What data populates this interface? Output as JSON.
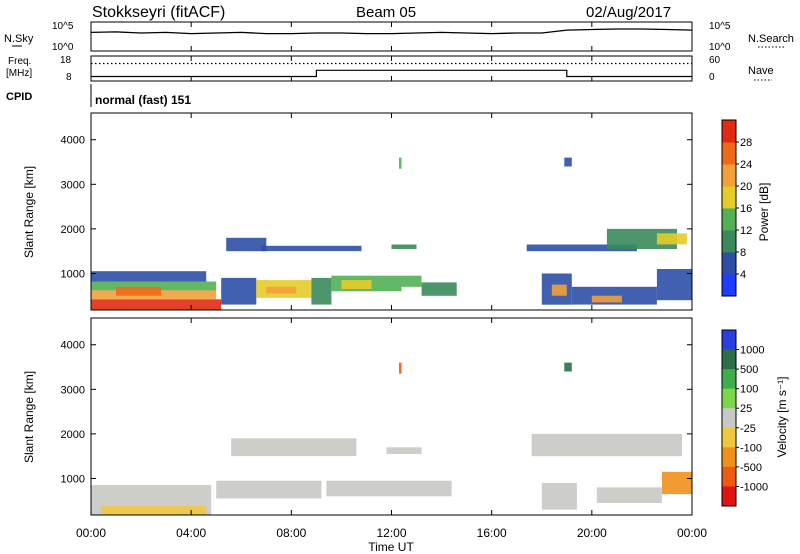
{
  "header": {
    "station": "Stokkseyri (fitACF)",
    "beam": "Beam 05",
    "date": "02/Aug/2017"
  },
  "labels": {
    "nsky": "N.Sky",
    "nsearch": "N.Search",
    "freq_line1": "Freq.",
    "freq_line2": "[MHz]",
    "nave": "Nave",
    "cpid": "CPID",
    "cpid_value": "normal (fast) 151",
    "time_axis": "Time UT"
  },
  "colors": {
    "axis": "#000000",
    "data_line": "#000000"
  },
  "chart_data": [
    {
      "type": "line",
      "name": "noise",
      "y_ticks_left": [
        "10^5",
        "10^0"
      ],
      "y_ticks_right": [
        "10^5",
        "10^0"
      ],
      "series": [
        {
          "name": "N.Sky",
          "style": "solid",
          "x_hours": [
            0,
            1,
            2,
            3,
            4,
            5,
            6,
            7,
            8,
            9,
            10,
            11,
            12,
            13,
            14,
            15,
            16,
            17,
            18,
            19,
            20,
            21,
            22,
            23,
            24
          ],
          "values_log10": [
            3.2,
            3.3,
            3.1,
            3.2,
            3.0,
            3.1,
            3.2,
            3.0,
            3.0,
            3.1,
            3.1,
            3.0,
            3.0,
            3.1,
            3.2,
            3.1,
            3.0,
            3.1,
            3.1,
            3.6,
            3.7,
            3.8,
            3.8,
            3.7,
            3.6
          ]
        }
      ]
    },
    {
      "type": "line",
      "name": "frequency",
      "y_ticks_left": [
        "18",
        "8"
      ],
      "y_ticks_right": [
        "60",
        "0"
      ],
      "series": [
        {
          "name": "Freq. [MHz]",
          "style": "solid",
          "x_hours": [
            0,
            9,
            9,
            19,
            19,
            24
          ],
          "values": [
            9.8,
            9.8,
            12.3,
            12.3,
            9.8,
            9.8
          ]
        },
        {
          "name": "Nave",
          "style": "dotted",
          "x_hours": [
            0,
            24
          ],
          "values": [
            42,
            42
          ]
        }
      ]
    },
    {
      "type": "heatmap",
      "name": "power",
      "ylabel": "Slant Range [km]",
      "y_ticks": [
        1000,
        2000,
        3000,
        4000
      ],
      "ylim": [
        180,
        4600
      ],
      "colorbar_label": "Power [dB]",
      "colorbar_ticks": [
        4,
        8,
        12,
        16,
        20,
        24,
        28
      ],
      "colorbar_range": [
        0,
        32
      ],
      "colorbar_colors": [
        "#1f3dff",
        "#2c4fa6",
        "#3a8a5a",
        "#52b055",
        "#e6cc2a",
        "#f2a03a",
        "#ee6a1a",
        "#e02a12"
      ],
      "regions": [
        {
          "x0": 0.0,
          "x1": 5.2,
          "r0": 180,
          "r1": 420,
          "level": 7
        },
        {
          "x0": 0.0,
          "x1": 5.0,
          "r0": 420,
          "r1": 620,
          "level": 5
        },
        {
          "x0": 0.0,
          "x1": 5.0,
          "r0": 620,
          "r1": 820,
          "level": 3
        },
        {
          "x0": 0.0,
          "x1": 4.6,
          "r0": 820,
          "r1": 1050,
          "level": 1
        },
        {
          "x0": 1.0,
          "x1": 2.8,
          "r0": 500,
          "r1": 700,
          "level": 6
        },
        {
          "x0": 5.2,
          "x1": 6.6,
          "r0": 300,
          "r1": 900,
          "level": 1
        },
        {
          "x0": 6.6,
          "x1": 8.8,
          "r0": 450,
          "r1": 850,
          "level": 4
        },
        {
          "x0": 7.0,
          "x1": 8.2,
          "r0": 550,
          "r1": 700,
          "level": 5
        },
        {
          "x0": 8.8,
          "x1": 9.6,
          "r0": 300,
          "r1": 900,
          "level": 2
        },
        {
          "x0": 9.6,
          "x1": 12.4,
          "r0": 600,
          "r1": 950,
          "level": 3
        },
        {
          "x0": 10.0,
          "x1": 11.2,
          "r0": 650,
          "r1": 850,
          "level": 4
        },
        {
          "x0": 12.4,
          "x1": 13.2,
          "r0": 700,
          "r1": 950,
          "level": 3
        },
        {
          "x0": 13.2,
          "x1": 14.6,
          "r0": 500,
          "r1": 800,
          "level": 2
        },
        {
          "x0": 5.4,
          "x1": 7.0,
          "r0": 1500,
          "r1": 1800,
          "level": 1
        },
        {
          "x0": 6.8,
          "x1": 10.8,
          "r0": 1500,
          "r1": 1620,
          "level": 1
        },
        {
          "x0": 12.0,
          "x1": 13.0,
          "r0": 1550,
          "r1": 1650,
          "level": 2
        },
        {
          "x0": 18.0,
          "x1": 19.2,
          "r0": 300,
          "r1": 1000,
          "level": 1
        },
        {
          "x0": 18.4,
          "x1": 19.0,
          "r0": 500,
          "r1": 750,
          "level": 5
        },
        {
          "x0": 19.2,
          "x1": 22.6,
          "r0": 300,
          "r1": 700,
          "level": 1
        },
        {
          "x0": 20.0,
          "x1": 21.2,
          "r0": 350,
          "r1": 500,
          "level": 5
        },
        {
          "x0": 22.6,
          "x1": 24.0,
          "r0": 400,
          "r1": 1100,
          "level": 1
        },
        {
          "x0": 17.4,
          "x1": 21.8,
          "r0": 1500,
          "r1": 1650,
          "level": 1
        },
        {
          "x0": 20.6,
          "x1": 23.4,
          "r0": 1550,
          "r1": 2000,
          "level": 2
        },
        {
          "x0": 22.6,
          "x1": 23.8,
          "r0": 1650,
          "r1": 1900,
          "level": 4
        },
        {
          "x0": 18.9,
          "x1": 19.2,
          "r0": 3400,
          "r1": 3600,
          "level": 1
        },
        {
          "x0": 12.3,
          "x1": 12.4,
          "r0": 3350,
          "r1": 3600,
          "level": 3
        }
      ]
    },
    {
      "type": "heatmap",
      "name": "velocity",
      "ylabel": "Slant Range [km]",
      "y_ticks": [
        1000,
        2000,
        3000,
        4000
      ],
      "ylim": [
        180,
        4600
      ],
      "colorbar_label": "Velocity [m s⁻¹]",
      "colorbar_ticks": [
        1000,
        500,
        100,
        25,
        -25,
        -100,
        -500,
        -1000
      ],
      "colorbar_colors": [
        "#2a3fe0",
        "#2c6e4a",
        "#3fae4a",
        "#7cd64a",
        "#c8c8c4",
        "#f0c840",
        "#f0901a",
        "#ee5a12",
        "#e01414"
      ],
      "regions": [
        {
          "x0": 0.0,
          "x1": 4.8,
          "r0": 180,
          "r1": 850,
          "level": 4
        },
        {
          "x0": 0.4,
          "x1": 4.6,
          "r0": 180,
          "r1": 380,
          "level": 5
        },
        {
          "x0": 5.0,
          "x1": 9.2,
          "r0": 550,
          "r1": 950,
          "level": 4
        },
        {
          "x0": 9.4,
          "x1": 14.4,
          "r0": 600,
          "r1": 950,
          "level": 4
        },
        {
          "x0": 5.6,
          "x1": 10.6,
          "r0": 1500,
          "r1": 1900,
          "level": 4
        },
        {
          "x0": 11.8,
          "x1": 13.2,
          "r0": 1550,
          "r1": 1700,
          "level": 4
        },
        {
          "x0": 18.0,
          "x1": 19.4,
          "r0": 300,
          "r1": 900,
          "level": 4
        },
        {
          "x0": 20.2,
          "x1": 22.8,
          "r0": 450,
          "r1": 800,
          "level": 4
        },
        {
          "x0": 22.8,
          "x1": 24.0,
          "r0": 650,
          "r1": 1150,
          "level": 6
        },
        {
          "x0": 17.6,
          "x1": 23.6,
          "r0": 1500,
          "r1": 2000,
          "level": 4
        },
        {
          "x0": 18.9,
          "x1": 19.2,
          "r0": 3400,
          "r1": 3600,
          "level": 1
        },
        {
          "x0": 12.3,
          "x1": 12.4,
          "r0": 3350,
          "r1": 3600,
          "level": 7
        }
      ]
    }
  ],
  "time_axis": {
    "ticks": [
      "00:00",
      "04:00",
      "08:00",
      "12:00",
      "16:00",
      "20:00",
      "00:00"
    ]
  }
}
